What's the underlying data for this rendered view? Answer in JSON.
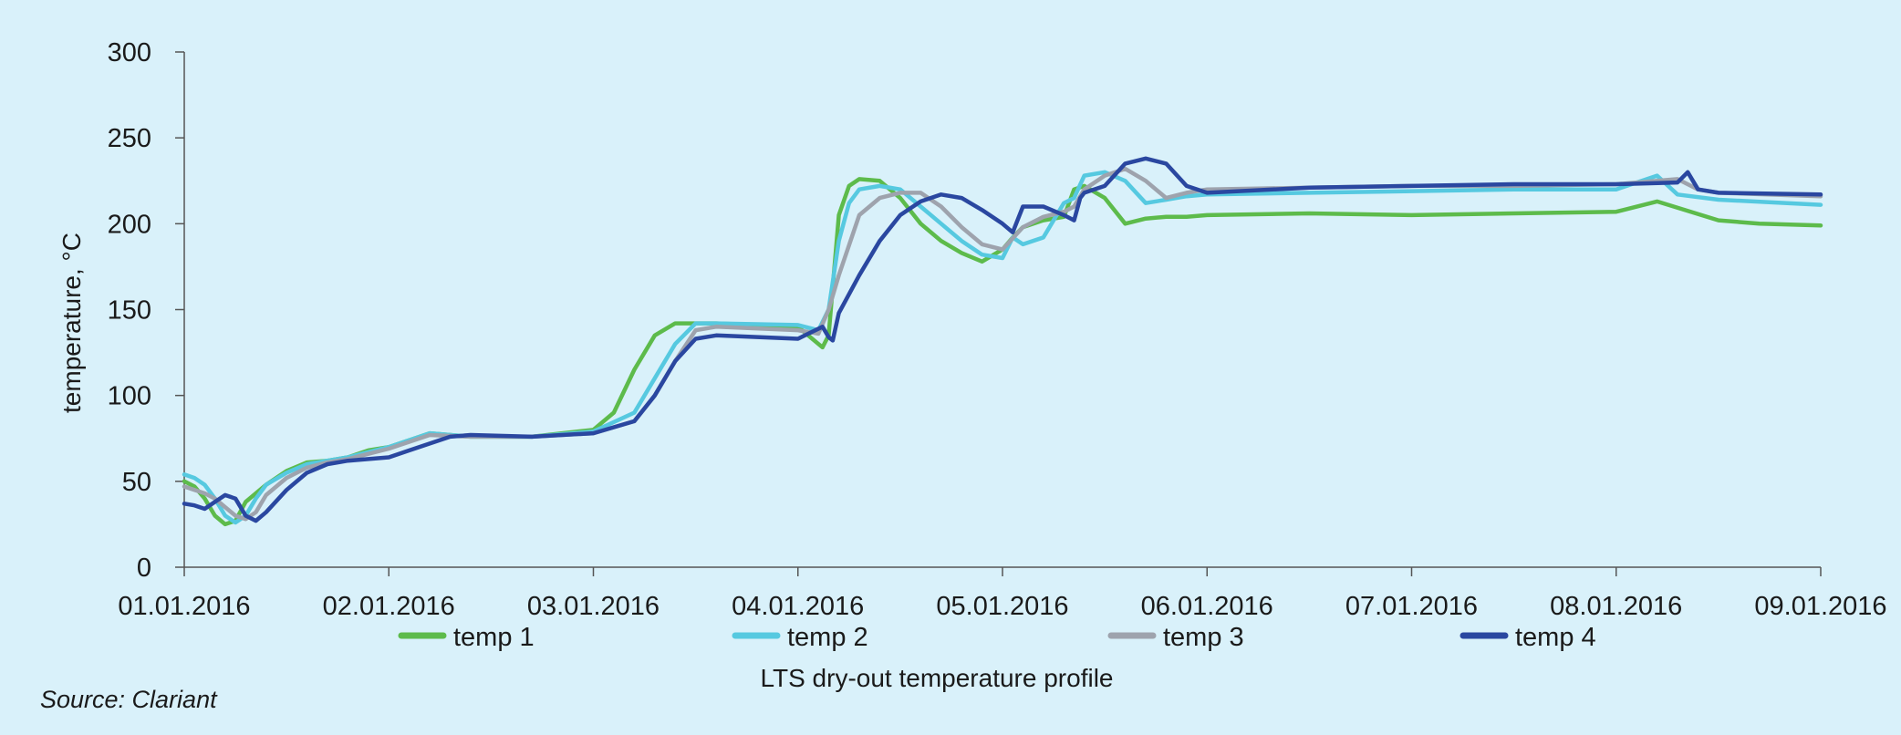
{
  "source_note": "Source: Clariant",
  "colors": {
    "background": "#d9f1fa",
    "axis": "#555555",
    "temp1": "#5dbb4b",
    "temp2": "#56c9e0",
    "temp3": "#9ea3ad",
    "temp4": "#2a47a0"
  },
  "chart_data": {
    "type": "line",
    "title": "",
    "caption": "LTS dry-out temperature profile",
    "xlabel": "",
    "ylabel": "temperature, °C",
    "ylim": [
      0,
      300
    ],
    "y_ticks": [
      "0",
      "50",
      "100",
      "150",
      "200",
      "250",
      "300"
    ],
    "x_ticks": [
      "01.01.2016",
      "02.01.2016",
      "03.01.2016",
      "04.01.2016",
      "05.01.2016",
      "06.01.2016",
      "07.01.2016",
      "08.01.2016",
      "09.01.2016"
    ],
    "x_unit": "day since 01.01.2016",
    "xlim": [
      0,
      8
    ],
    "grid": false,
    "legend": "bottom",
    "series": [
      {
        "name": "temp 1",
        "color": "#5dbb4b",
        "x": [
          0,
          0.05,
          0.1,
          0.15,
          0.2,
          0.25,
          0.3,
          0.4,
          0.5,
          0.6,
          0.7,
          0.8,
          0.9,
          1.0,
          1.2,
          1.4,
          1.7,
          2.0,
          2.1,
          2.2,
          2.3,
          2.4,
          2.5,
          2.6,
          3.0,
          3.1,
          3.12,
          3.15,
          3.2,
          3.25,
          3.3,
          3.4,
          3.5,
          3.6,
          3.7,
          3.8,
          3.9,
          4.0,
          4.05,
          4.1,
          4.2,
          4.3,
          4.35,
          4.4,
          4.5,
          4.6,
          4.7,
          4.8,
          4.9,
          5.0,
          5.5,
          6.0,
          6.5,
          7.0,
          7.2,
          7.5,
          7.7,
          8.0
        ],
        "y": [
          50,
          47,
          40,
          30,
          25,
          27,
          38,
          48,
          56,
          61,
          62,
          64,
          68,
          70,
          78,
          76,
          76,
          80,
          90,
          115,
          135,
          142,
          142,
          142,
          140,
          130,
          128,
          135,
          205,
          222,
          226,
          225,
          215,
          200,
          190,
          183,
          178,
          185,
          192,
          198,
          202,
          204,
          220,
          222,
          215,
          200,
          203,
          204,
          204,
          205,
          206,
          205,
          206,
          207,
          213,
          202,
          200,
          199
        ]
      },
      {
        "name": "temp 2",
        "color": "#56c9e0",
        "x": [
          0,
          0.05,
          0.1,
          0.15,
          0.2,
          0.25,
          0.3,
          0.35,
          0.4,
          0.5,
          0.6,
          0.7,
          0.8,
          0.9,
          1.0,
          1.2,
          1.4,
          1.7,
          2.0,
          2.2,
          2.3,
          2.4,
          2.5,
          2.6,
          3.0,
          3.1,
          3.15,
          3.2,
          3.25,
          3.3,
          3.4,
          3.5,
          3.6,
          3.7,
          3.8,
          3.9,
          4.0,
          4.05,
          4.1,
          4.2,
          4.3,
          4.35,
          4.4,
          4.5,
          4.6,
          4.7,
          4.8,
          4.9,
          5.0,
          5.5,
          6.0,
          6.5,
          7.0,
          7.2,
          7.3,
          7.5,
          8.0
        ],
        "y": [
          54,
          52,
          48,
          40,
          30,
          26,
          30,
          40,
          48,
          55,
          60,
          62,
          64,
          67,
          70,
          78,
          76,
          76,
          79,
          90,
          110,
          130,
          142,
          142,
          141,
          138,
          150,
          190,
          212,
          220,
          222,
          220,
          210,
          200,
          190,
          182,
          180,
          192,
          188,
          192,
          212,
          215,
          228,
          230,
          225,
          212,
          214,
          216,
          217,
          218,
          219,
          220,
          220,
          228,
          217,
          214,
          211
        ]
      },
      {
        "name": "temp 3",
        "color": "#9ea3ad",
        "x": [
          0,
          0.05,
          0.1,
          0.15,
          0.2,
          0.25,
          0.3,
          0.35,
          0.4,
          0.5,
          0.6,
          0.7,
          0.8,
          0.9,
          1.0,
          1.2,
          1.4,
          1.7,
          2.0,
          2.2,
          2.3,
          2.4,
          2.5,
          2.6,
          3.0,
          3.1,
          3.15,
          3.2,
          3.3,
          3.4,
          3.5,
          3.6,
          3.7,
          3.8,
          3.9,
          4.0,
          4.1,
          4.2,
          4.3,
          4.35,
          4.4,
          4.5,
          4.6,
          4.7,
          4.8,
          4.9,
          5.0,
          5.5,
          6.0,
          6.5,
          7.0,
          7.3,
          7.4,
          7.5,
          8.0
        ],
        "y": [
          47,
          45,
          43,
          40,
          35,
          30,
          28,
          32,
          42,
          52,
          58,
          61,
          63,
          66,
          69,
          77,
          76,
          76,
          78,
          85,
          100,
          120,
          138,
          140,
          138,
          136,
          150,
          170,
          205,
          215,
          218,
          218,
          210,
          198,
          188,
          185,
          198,
          204,
          207,
          210,
          220,
          228,
          232,
          225,
          215,
          218,
          220,
          221,
          222,
          222,
          223,
          226,
          220,
          218,
          216
        ]
      },
      {
        "name": "temp 4",
        "color": "#2a47a0",
        "x": [
          0,
          0.05,
          0.1,
          0.15,
          0.2,
          0.25,
          0.3,
          0.35,
          0.4,
          0.5,
          0.6,
          0.7,
          0.8,
          0.9,
          1.0,
          1.1,
          1.2,
          1.3,
          1.4,
          1.7,
          2.0,
          2.2,
          2.3,
          2.4,
          2.5,
          2.6,
          3.0,
          3.12,
          3.15,
          3.17,
          3.2,
          3.3,
          3.4,
          3.5,
          3.6,
          3.7,
          3.8,
          3.9,
          4.0,
          4.05,
          4.1,
          4.2,
          4.3,
          4.35,
          4.38,
          4.4,
          4.5,
          4.6,
          4.7,
          4.8,
          4.9,
          5.0,
          5.5,
          6.0,
          6.5,
          7.0,
          7.3,
          7.35,
          7.4,
          7.5,
          8.0
        ],
        "y": [
          37,
          36,
          34,
          38,
          42,
          40,
          30,
          27,
          32,
          45,
          55,
          60,
          62,
          63,
          64,
          68,
          72,
          76,
          77,
          76,
          78,
          85,
          100,
          120,
          133,
          135,
          133,
          140,
          134,
          132,
          148,
          170,
          190,
          205,
          213,
          217,
          215,
          208,
          200,
          195,
          210,
          210,
          205,
          202,
          215,
          218,
          222,
          235,
          238,
          235,
          222,
          218,
          221,
          222,
          223,
          223,
          224,
          230,
          220,
          218,
          217
        ]
      }
    ]
  }
}
